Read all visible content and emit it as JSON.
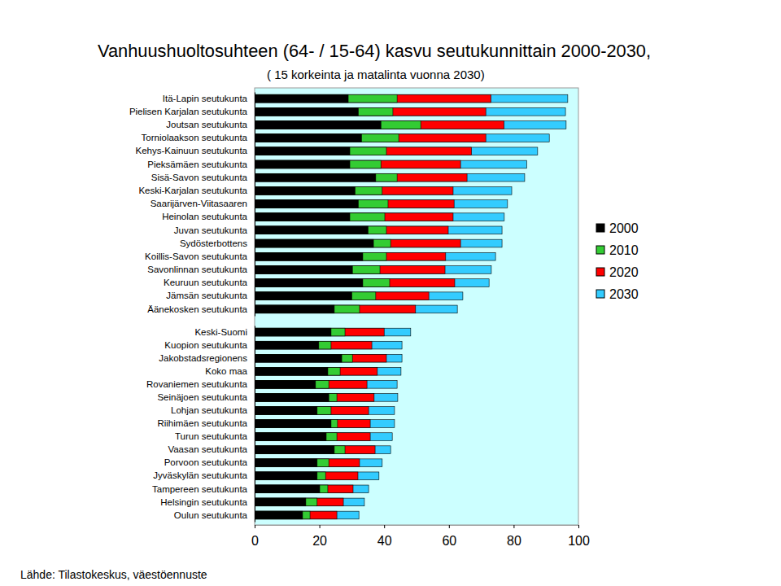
{
  "chart_data": [
    {
      "type": "bar",
      "title": "Vanhuushuoltosuhteen (64- / 15-64) kasvu seutukunnittain 2000-2030,",
      "subtitle": "( 15 korkeinta ja matalinta vuonna 2030)",
      "orientation": "horizontal",
      "legend": "right",
      "tick_labels": "y",
      "xlim": [
        0,
        100
      ],
      "categories": [
        "Itä-Lapin seutukunta",
        "Pielisen Karjalan seutukunta",
        "Joutsan seutukunta",
        "Torniolaakson seutukunta",
        "Kehys-Kainuun seutukunta",
        "Pieksämäen seutukunta",
        "Sisä-Savon seutukunta",
        "Keski-Karjalan seutukunta",
        "Saarijärven-Viitasaaren",
        "Heinolan seutukunta",
        "Juvan seutukunta",
        "Sydösterbottens",
        "Koillis-Savon seutukunta",
        "Savonlinnan seutukunta",
        "Keuruun seutukunta",
        "Jämsän seutukunta",
        "Äänekosken seutukunta"
      ],
      "series": [
        {
          "name": "2000",
          "color": "#000000",
          "values": [
            28.9,
            32,
            39,
            33,
            29.4,
            29.4,
            37.4,
            31,
            32,
            29.4,
            35,
            36.7,
            33.4,
            30.2,
            33.4,
            30,
            24.6
          ]
        },
        {
          "name": "2010",
          "color": "#33cc33",
          "values": [
            44,
            42.7,
            51.3,
            44.5,
            40.7,
            39,
            44,
            39.4,
            41.2,
            40.2,
            40.7,
            42,
            40.7,
            38.7,
            41.7,
            37.4,
            32.4
          ]
        },
        {
          "name": "2020",
          "color": "#ff0000",
          "values": [
            73,
            71.4,
            77,
            71.4,
            67,
            63.6,
            65.6,
            61.3,
            61.6,
            61.3,
            59.8,
            63.6,
            59,
            58.8,
            61.8,
            53.8,
            49.7
          ]
        },
        {
          "name": "2030",
          "color": "#33ccff",
          "values": [
            96.7,
            96,
            96.2,
            91,
            87.4,
            84,
            83.4,
            79.4,
            78.1,
            77.1,
            76.4,
            76.4,
            74.4,
            73.1,
            72.4,
            64.3,
            62.6
          ]
        }
      ]
    },
    {
      "type": "bar",
      "orientation": "horizontal",
      "tick_labels": true,
      "xlim": [
        0,
        100
      ],
      "xticks": [
        0,
        20,
        40,
        60,
        80,
        100
      ],
      "source": "Lähde: Tilastokeskus, väestöennuste",
      "categories": [
        "Keski-Suomi",
        "Kuopion seutukunta",
        "Jakobstadsregionens",
        "Koko maa",
        "Rovaniemen seutukunta",
        "Seinäjoen seutukunta",
        "Lohjan seutukunta",
        "Riihimäen seutukunta",
        "Turun seutukunta",
        "Vaasan seutukunta",
        "Porvoon seutukunta",
        "Jyväskylän seutukunta",
        "Tampereen seutukunta",
        "Helsingin seutukunta",
        "Oulun seutukunta"
      ],
      "series": [
        {
          "color": "#000000",
          "values": [
            23.6,
            19.8,
            26.9,
            22.6,
            18.8,
            22.9,
            19.3,
            23.6,
            22.1,
            24.6,
            19.3,
            19.3,
            20.1,
            15.8,
            14.8
          ]
        },
        {
          "color": "#33cc33",
          "values": [
            27.9,
            23.6,
            30.2,
            26.4,
            22.9,
            25.4,
            23.6,
            25.6,
            25.4,
            27.9,
            22.9,
            21.9,
            22.6,
            19.3,
            17.1
          ]
        },
        {
          "color": "#ff0000",
          "values": [
            40,
            36.2,
            40.7,
            37.9,
            34.7,
            36.9,
            35.2,
            35.7,
            35.7,
            37.2,
            32.4,
            31.9,
            30.4,
            27.4,
            25.4
          ]
        },
        {
          "color": "#33ccff",
          "values": [
            48.2,
            45.5,
            45.5,
            45.2,
            44,
            44.2,
            43.2,
            43.2,
            42.5,
            42,
            39.4,
            38.4,
            35.2,
            33.9,
            32.2
          ]
        }
      ]
    }
  ]
}
